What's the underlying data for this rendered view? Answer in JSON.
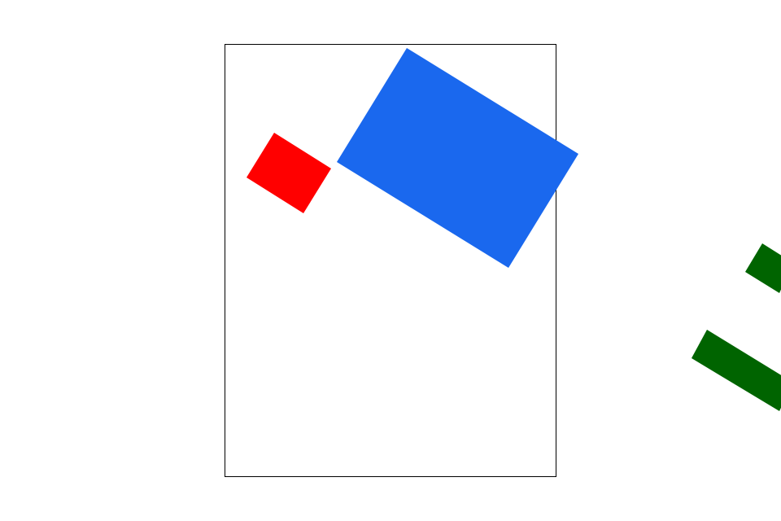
{
  "scene": {
    "background_color": "#ffffff",
    "frame_color": "#000000",
    "shapes": [
      {
        "name": "blue-rectangle",
        "color": "#1a68ee"
      },
      {
        "name": "red-rectangle",
        "color": "#ff0000"
      },
      {
        "name": "green-bar-upper",
        "color": "#006400"
      },
      {
        "name": "green-bar-lower",
        "color": "#006400"
      }
    ]
  }
}
